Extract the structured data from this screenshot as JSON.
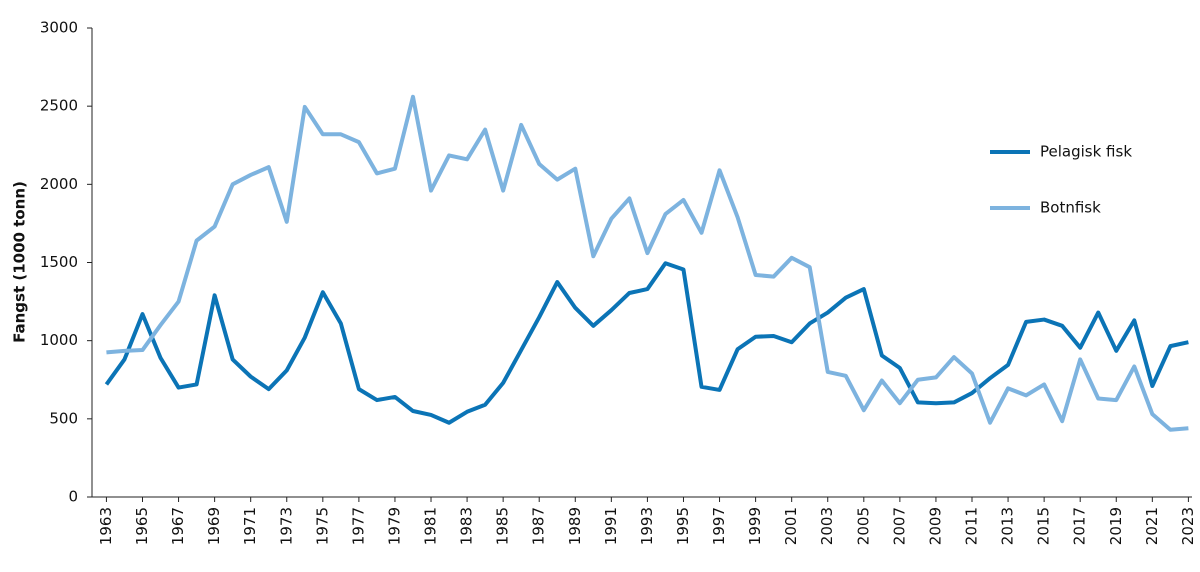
{
  "chart_data": {
    "type": "line",
    "y_label": "Fangst (1000 tonn)",
    "x": [
      1963,
      1964,
      1965,
      1966,
      1967,
      1968,
      1969,
      1970,
      1971,
      1972,
      1973,
      1974,
      1975,
      1976,
      1977,
      1978,
      1979,
      1980,
      1981,
      1982,
      1983,
      1984,
      1985,
      1986,
      1987,
      1988,
      1989,
      1990,
      1991,
      1992,
      1993,
      1994,
      1995,
      1996,
      1997,
      1998,
      1999,
      2000,
      2001,
      2002,
      2003,
      2004,
      2005,
      2006,
      2007,
      2008,
      2009,
      2010,
      2011,
      2012,
      2013,
      2014,
      2015,
      2016,
      2017,
      2018,
      2019,
      2020,
      2021,
      2022,
      2023
    ],
    "series": [
      {
        "name": "Pelagisk fisk",
        "color": "#0b74b6",
        "values": [
          720,
          880,
          1170,
          890,
          700,
          720,
          1290,
          880,
          770,
          690,
          810,
          1020,
          1310,
          1110,
          690,
          620,
          640,
          550,
          525,
          475,
          545,
          590,
          730,
          940,
          1150,
          1375,
          1210,
          1095,
          1195,
          1305,
          1330,
          1495,
          1455,
          705,
          685,
          945,
          1025,
          1030,
          990,
          1110,
          1180,
          1275,
          1330,
          905,
          825,
          605,
          600,
          605,
          665,
          760,
          845,
          1120,
          1135,
          1095,
          955,
          1180,
          935,
          1130,
          710,
          965,
          990
        ]
      },
      {
        "name": "Botnfisk",
        "color": "#7db3df",
        "values": [
          925,
          935,
          940,
          1100,
          1250,
          1640,
          1730,
          2000,
          2060,
          2110,
          1760,
          2495,
          2320,
          2320,
          2270,
          2070,
          2100,
          2560,
          1960,
          2185,
          2160,
          2350,
          1960,
          2380,
          2130,
          2030,
          2100,
          1540,
          1780,
          1910,
          1560,
          1810,
          1900,
          1690,
          2090,
          1790,
          1420,
          1410,
          1530,
          1470,
          800,
          775,
          555,
          745,
          600,
          750,
          765,
          895,
          790,
          475,
          695,
          650,
          720,
          485,
          880,
          630,
          620,
          835,
          530,
          430,
          440
        ]
      }
    ],
    "xlim": [
      1962.2,
      2023.2
    ],
    "xticks": [
      1963,
      1965,
      1967,
      1969,
      1971,
      1973,
      1975,
      1977,
      1979,
      1981,
      1983,
      1985,
      1987,
      1989,
      1991,
      1993,
      1995,
      1997,
      1999,
      2001,
      2003,
      2005,
      2007,
      2009,
      2011,
      2013,
      2015,
      2017,
      2019,
      2021,
      2023
    ],
    "ylim": [
      0,
      3000
    ],
    "yticks": [
      0,
      500,
      1000,
      1500,
      2000,
      2500,
      3000
    ],
    "grid": false,
    "legend": "right"
  }
}
